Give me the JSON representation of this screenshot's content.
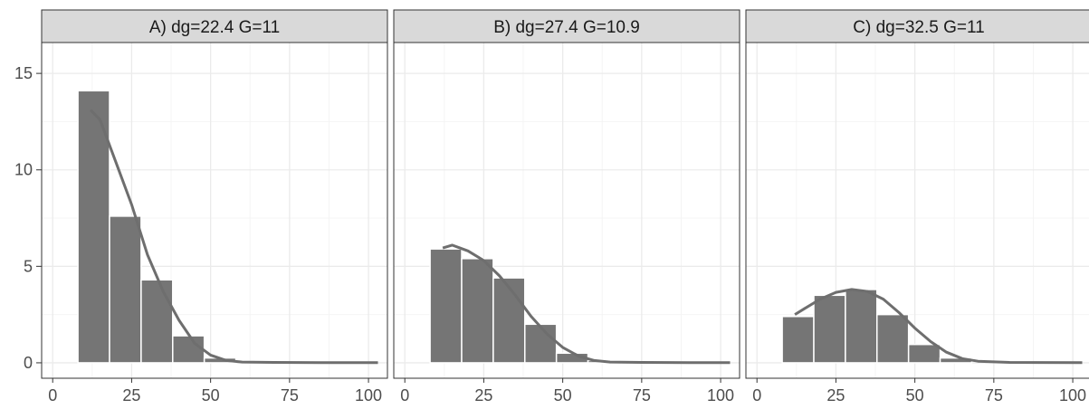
{
  "chart_data": {
    "type": "bar",
    "colors": {
      "bar": "#757575",
      "bar_edge": "#ffffff",
      "curve": "#6e6e6e",
      "strip_fill": "#d9d9d9",
      "panel_border": "#333333",
      "grid_major": "#ebebeb",
      "grid_minor": "#f4f4f4"
    },
    "x_ticks": [
      0,
      25,
      50,
      75,
      100
    ],
    "y_ticks": [
      0,
      5,
      10,
      15
    ],
    "xlim": [
      -3.5,
      106
    ],
    "ylim": [
      -0.8,
      16.6
    ],
    "grid": true,
    "panels": [
      {
        "title": "A) dg=22.4 G=11",
        "bins": [
          {
            "x0": 8,
            "x1": 18,
            "y": 14.1
          },
          {
            "x0": 18,
            "x1": 28,
            "y": 7.6
          },
          {
            "x0": 28,
            "x1": 38,
            "y": 4.3
          },
          {
            "x0": 38,
            "x1": 48,
            "y": 1.4
          },
          {
            "x0": 48,
            "x1": 58,
            "y": 0.25
          }
        ],
        "curve": [
          [
            12,
            13.1
          ],
          [
            15,
            12.6
          ],
          [
            20,
            10.4
          ],
          [
            25,
            8.2
          ],
          [
            30,
            5.6
          ],
          [
            35,
            3.7
          ],
          [
            40,
            2.2
          ],
          [
            45,
            1.0
          ],
          [
            50,
            0.4
          ],
          [
            55,
            0.12
          ],
          [
            60,
            0.04
          ],
          [
            70,
            0.02
          ],
          [
            85,
            0.01
          ],
          [
            103,
            0.01
          ]
        ]
      },
      {
        "title": "B) dg=27.4 G=10.9",
        "bins": [
          {
            "x0": 8,
            "x1": 18,
            "y": 5.9
          },
          {
            "x0": 18,
            "x1": 28,
            "y": 5.4
          },
          {
            "x0": 28,
            "x1": 38,
            "y": 4.4
          },
          {
            "x0": 38,
            "x1": 48,
            "y": 2.0
          },
          {
            "x0": 48,
            "x1": 58,
            "y": 0.5
          },
          {
            "x0": 58,
            "x1": 68,
            "y": 0.12
          }
        ],
        "curve": [
          [
            12,
            5.95
          ],
          [
            15,
            6.1
          ],
          [
            20,
            5.8
          ],
          [
            25,
            5.3
          ],
          [
            30,
            4.5
          ],
          [
            35,
            3.5
          ],
          [
            40,
            2.4
          ],
          [
            45,
            1.5
          ],
          [
            50,
            0.8
          ],
          [
            55,
            0.35
          ],
          [
            60,
            0.12
          ],
          [
            65,
            0.04
          ],
          [
            75,
            0.02
          ],
          [
            90,
            0.01
          ],
          [
            103,
            0.01
          ]
        ]
      },
      {
        "title": "C) dg=32.5 G=11",
        "bins": [
          {
            "x0": 8,
            "x1": 18,
            "y": 2.4
          },
          {
            "x0": 18,
            "x1": 28,
            "y": 3.5
          },
          {
            "x0": 28,
            "x1": 38,
            "y": 3.8
          },
          {
            "x0": 38,
            "x1": 48,
            "y": 2.5
          },
          {
            "x0": 48,
            "x1": 58,
            "y": 0.95
          },
          {
            "x0": 58,
            "x1": 68,
            "y": 0.25
          }
        ],
        "curve": [
          [
            12,
            2.5
          ],
          [
            15,
            2.8
          ],
          [
            20,
            3.3
          ],
          [
            25,
            3.65
          ],
          [
            30,
            3.8
          ],
          [
            35,
            3.7
          ],
          [
            40,
            3.3
          ],
          [
            45,
            2.6
          ],
          [
            50,
            1.8
          ],
          [
            55,
            1.1
          ],
          [
            60,
            0.55
          ],
          [
            65,
            0.22
          ],
          [
            70,
            0.08
          ],
          [
            80,
            0.02
          ],
          [
            103,
            0.01
          ]
        ]
      }
    ]
  }
}
